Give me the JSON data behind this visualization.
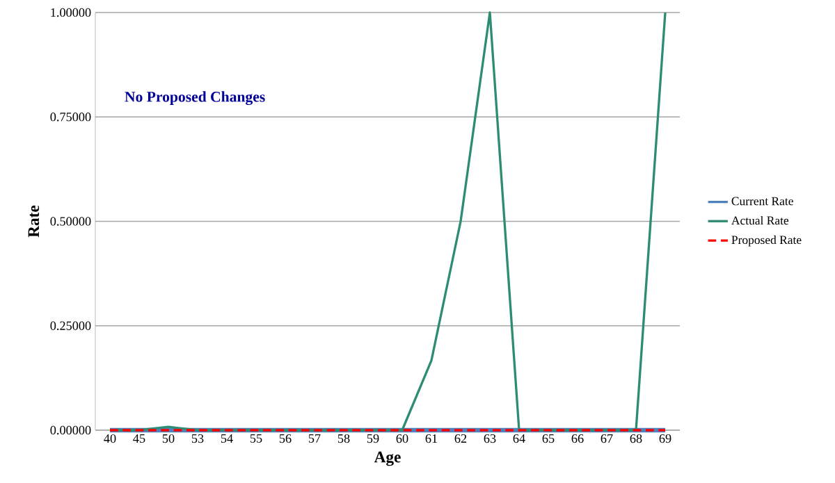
{
  "chart_data": {
    "type": "line",
    "xlabel": "Age",
    "ylabel": "Rate",
    "categories": [
      "40",
      "45",
      "50",
      "53",
      "54",
      "55",
      "56",
      "57",
      "58",
      "59",
      "60",
      "61",
      "62",
      "63",
      "64",
      "65",
      "66",
      "67",
      "68",
      "69"
    ],
    "series": [
      {
        "name": "Current Rate",
        "color": "#4f81bd",
        "values": [
          0,
          0,
          0,
          0,
          0,
          0,
          0,
          0,
          0,
          0,
          0,
          0,
          0,
          0,
          0,
          0,
          0,
          0,
          0,
          0
        ]
      },
      {
        "name": "Actual Rate",
        "color": "#2e8b74",
        "values": [
          0,
          0,
          0.008,
          0,
          0,
          0,
          0,
          0,
          0,
          0,
          0,
          0.167,
          0.5,
          1,
          0,
          0,
          0,
          0,
          0,
          1
        ]
      },
      {
        "name": "Proposed Rate",
        "color": "#ff0000",
        "line_style": "dashed",
        "values": [
          0,
          0,
          0,
          0,
          0,
          0,
          0,
          0,
          0,
          0,
          0,
          0,
          0,
          0,
          0,
          0,
          0,
          0,
          0,
          0
        ]
      }
    ],
    "ylim": [
      0,
      1
    ],
    "yticks": [
      {
        "value": 0,
        "label": "0.00000"
      },
      {
        "value": 0.25,
        "label": "0.25000"
      },
      {
        "value": 0.5,
        "label": "0.50000"
      },
      {
        "value": 0.75,
        "label": "0.75000"
      },
      {
        "value": 1,
        "label": "1.00000"
      }
    ],
    "grid": "y",
    "legend": "right",
    "annotations": [
      "No Proposed Changes"
    ]
  }
}
